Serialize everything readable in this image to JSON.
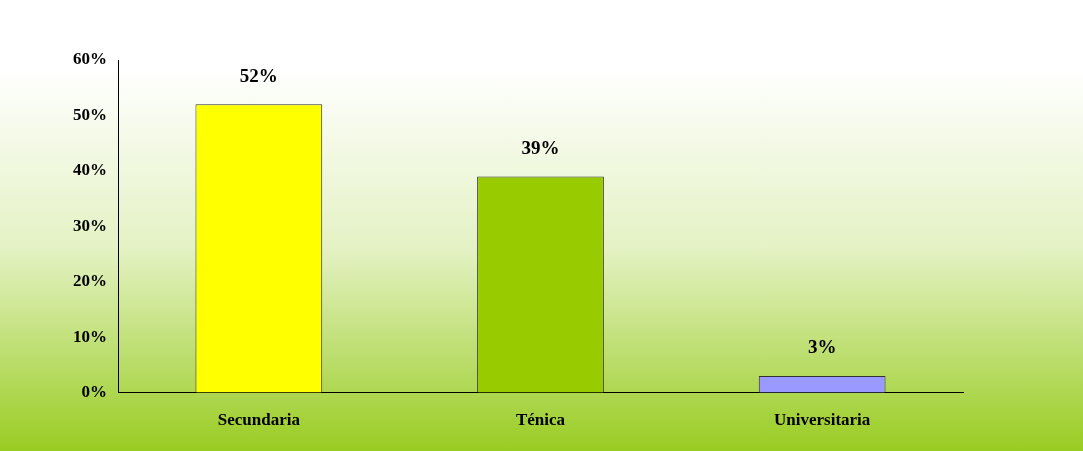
{
  "chart_data": {
    "type": "bar",
    "categories": [
      "Secundaria",
      "Ténica",
      "Universitaria"
    ],
    "values": [
      52,
      39,
      3
    ],
    "colors": [
      "#ffff00",
      "#99cc00",
      "#9999ff"
    ],
    "ylim": [
      0,
      60
    ],
    "yticks": [
      {
        "value": 0,
        "label": "0%"
      },
      {
        "value": 10,
        "label": "10%"
      },
      {
        "value": 20,
        "label": "20%"
      },
      {
        "value": 30,
        "label": "30%"
      },
      {
        "value": 40,
        "label": "40%"
      },
      {
        "value": 50,
        "label": "50%"
      },
      {
        "value": 60,
        "label": "60%"
      }
    ],
    "value_labels": [
      "52%",
      "39%",
      "3%"
    ],
    "grid": false,
    "legend": false
  }
}
